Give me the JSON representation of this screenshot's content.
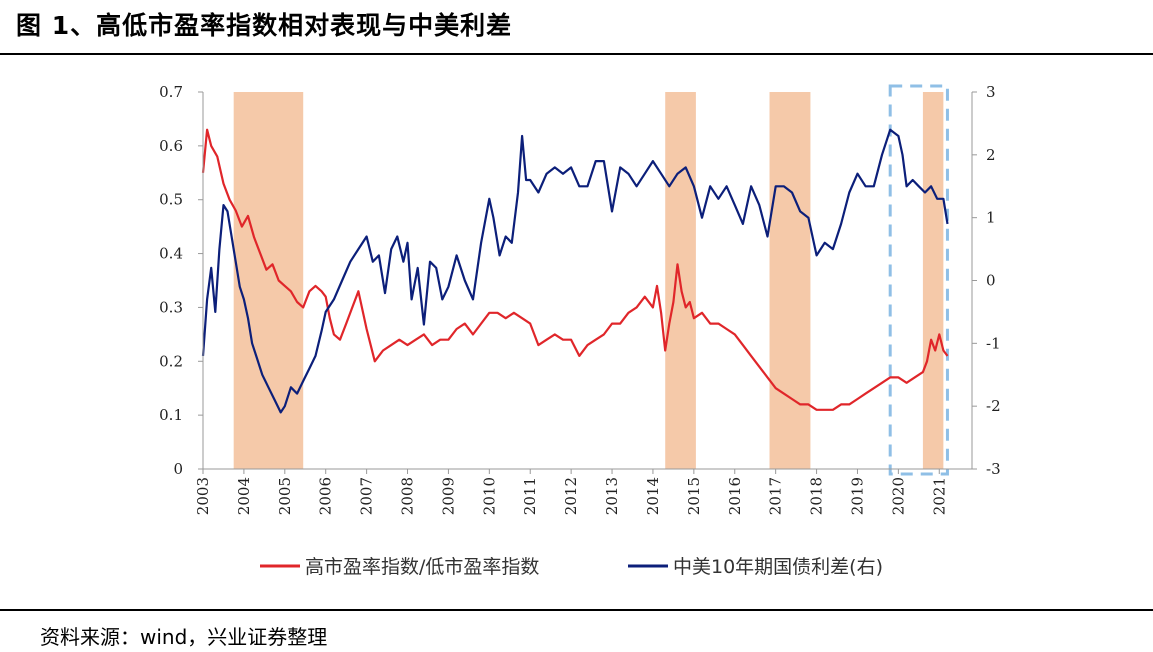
{
  "header": {
    "title": "图 1、高低市盈率指数相对表现与中美利差"
  },
  "footer": {
    "source": "资料来源：wind，兴业证券整理"
  },
  "colors": {
    "red_series": "#e0262a",
    "blue_series": "#0c1f7a",
    "shade": "#f5c9a9",
    "box": "#8fbfe6"
  },
  "chart_data": {
    "type": "line",
    "title": "高低市盈率指数相对表现与中美利差",
    "x_ticks": [
      "2003",
      "2004",
      "2005",
      "2006",
      "2007",
      "2008",
      "2009",
      "2010",
      "2011",
      "2012",
      "2013",
      "2014",
      "2015",
      "2016",
      "2017",
      "2018",
      "2019",
      "2020",
      "2021"
    ],
    "xlim": [
      2003,
      2021.8
    ],
    "left_axis": {
      "ylim": [
        0,
        0.7
      ],
      "ticks": [
        "0",
        "0.1",
        "0.2",
        "0.3",
        "0.4",
        "0.5",
        "0.6",
        "0.7"
      ]
    },
    "right_axis": {
      "ylim": [
        -3,
        3
      ],
      "ticks": [
        "-3",
        "-2",
        "-1",
        "0",
        "1",
        "2",
        "3"
      ]
    },
    "shaded_periods": [
      [
        2003.75,
        2005.45
      ],
      [
        2014.3,
        2015.05
      ],
      [
        2016.85,
        2017.85
      ],
      [
        2020.6,
        2021.1
      ]
    ],
    "highlight_box": [
      2019.8,
      2021.2
    ],
    "series": [
      {
        "name": "高市盈率指数/低市盈率指数",
        "axis": "left",
        "color": "#e0262a",
        "x": [
          2003.0,
          2003.1,
          2003.2,
          2003.35,
          2003.5,
          2003.65,
          2003.8,
          2003.95,
          2004.1,
          2004.25,
          2004.4,
          2004.55,
          2004.7,
          2004.85,
          2005.0,
          2005.15,
          2005.3,
          2005.45,
          2005.6,
          2005.75,
          2005.9,
          2006.0,
          2006.1,
          2006.2,
          2006.35,
          2006.5,
          2006.65,
          2006.8,
          2007.0,
          2007.2,
          2007.4,
          2007.6,
          2007.8,
          2008.0,
          2008.2,
          2008.4,
          2008.6,
          2008.8,
          2009.0,
          2009.2,
          2009.4,
          2009.6,
          2009.8,
          2010.0,
          2010.2,
          2010.4,
          2010.6,
          2010.8,
          2011.0,
          2011.2,
          2011.4,
          2011.6,
          2011.8,
          2012.0,
          2012.2,
          2012.4,
          2012.6,
          2012.8,
          2013.0,
          2013.2,
          2013.4,
          2013.6,
          2013.8,
          2014.0,
          2014.1,
          2014.2,
          2014.3,
          2014.4,
          2014.5,
          2014.6,
          2014.7,
          2014.8,
          2014.9,
          2015.0,
          2015.2,
          2015.4,
          2015.6,
          2015.8,
          2016.0,
          2016.2,
          2016.4,
          2016.6,
          2016.8,
          2017.0,
          2017.2,
          2017.4,
          2017.6,
          2017.8,
          2018.0,
          2018.2,
          2018.4,
          2018.6,
          2018.8,
          2019.0,
          2019.2,
          2019.4,
          2019.6,
          2019.8,
          2020.0,
          2020.2,
          2020.4,
          2020.6,
          2020.7,
          2020.8,
          2020.9,
          2021.0,
          2021.1,
          2021.2
        ],
        "y": [
          0.55,
          0.63,
          0.6,
          0.58,
          0.53,
          0.5,
          0.48,
          0.45,
          0.47,
          0.43,
          0.4,
          0.37,
          0.38,
          0.35,
          0.34,
          0.33,
          0.31,
          0.3,
          0.33,
          0.34,
          0.33,
          0.32,
          0.28,
          0.25,
          0.24,
          0.27,
          0.3,
          0.33,
          0.26,
          0.2,
          0.22,
          0.23,
          0.24,
          0.23,
          0.24,
          0.25,
          0.23,
          0.24,
          0.24,
          0.26,
          0.27,
          0.25,
          0.27,
          0.29,
          0.29,
          0.28,
          0.29,
          0.28,
          0.27,
          0.23,
          0.24,
          0.25,
          0.24,
          0.24,
          0.21,
          0.23,
          0.24,
          0.25,
          0.27,
          0.27,
          0.29,
          0.3,
          0.32,
          0.3,
          0.34,
          0.29,
          0.22,
          0.27,
          0.31,
          0.38,
          0.33,
          0.3,
          0.31,
          0.28,
          0.29,
          0.27,
          0.27,
          0.26,
          0.25,
          0.23,
          0.21,
          0.19,
          0.17,
          0.15,
          0.14,
          0.13,
          0.12,
          0.12,
          0.11,
          0.11,
          0.11,
          0.12,
          0.12,
          0.13,
          0.14,
          0.15,
          0.16,
          0.17,
          0.17,
          0.16,
          0.17,
          0.18,
          0.2,
          0.24,
          0.22,
          0.25,
          0.22,
          0.21
        ]
      },
      {
        "name": "中美10年期国债利差(右)",
        "axis": "right",
        "color": "#0c1f7a",
        "x": [
          2003.0,
          2003.1,
          2003.2,
          2003.3,
          2003.4,
          2003.5,
          2003.6,
          2003.7,
          2003.8,
          2003.9,
          2004.0,
          2004.1,
          2004.2,
          2004.3,
          2004.45,
          2004.6,
          2004.75,
          2004.9,
          2005.0,
          2005.15,
          2005.3,
          2005.45,
          2005.6,
          2005.75,
          2005.9,
          2006.0,
          2006.2,
          2006.4,
          2006.6,
          2006.8,
          2007.0,
          2007.15,
          2007.3,
          2007.45,
          2007.6,
          2007.75,
          2007.9,
          2008.0,
          2008.1,
          2008.25,
          2008.4,
          2008.55,
          2008.7,
          2008.85,
          2009.0,
          2009.2,
          2009.4,
          2009.6,
          2009.8,
          2010.0,
          2010.1,
          2010.25,
          2010.4,
          2010.55,
          2010.7,
          2010.8,
          2010.9,
          2011.0,
          2011.2,
          2011.4,
          2011.6,
          2011.8,
          2012.0,
          2012.2,
          2012.4,
          2012.6,
          2012.8,
          2013.0,
          2013.2,
          2013.4,
          2013.6,
          2013.8,
          2014.0,
          2014.2,
          2014.4,
          2014.6,
          2014.8,
          2015.0,
          2015.2,
          2015.4,
          2015.6,
          2015.8,
          2016.0,
          2016.2,
          2016.4,
          2016.6,
          2016.8,
          2017.0,
          2017.2,
          2017.4,
          2017.6,
          2017.8,
          2018.0,
          2018.2,
          2018.4,
          2018.6,
          2018.8,
          2019.0,
          2019.2,
          2019.4,
          2019.6,
          2019.8,
          2020.0,
          2020.1,
          2020.2,
          2020.35,
          2020.5,
          2020.65,
          2020.8,
          2020.95,
          2021.1,
          2021.2
        ],
        "y": [
          -1.2,
          -0.3,
          0.2,
          -0.5,
          0.5,
          1.2,
          1.1,
          0.7,
          0.3,
          -0.1,
          -0.3,
          -0.6,
          -1.0,
          -1.2,
          -1.5,
          -1.7,
          -1.9,
          -2.1,
          -2.0,
          -1.7,
          -1.8,
          -1.6,
          -1.4,
          -1.2,
          -0.8,
          -0.5,
          -0.3,
          0.0,
          0.3,
          0.5,
          0.7,
          0.3,
          0.4,
          -0.2,
          0.5,
          0.7,
          0.3,
          0.6,
          -0.3,
          0.2,
          -0.7,
          0.3,
          0.2,
          -0.3,
          -0.1,
          0.4,
          0.0,
          -0.3,
          0.6,
          1.3,
          1.0,
          0.4,
          0.7,
          0.6,
          1.4,
          2.3,
          1.6,
          1.6,
          1.4,
          1.7,
          1.8,
          1.7,
          1.8,
          1.5,
          1.5,
          1.9,
          1.9,
          1.1,
          1.8,
          1.7,
          1.5,
          1.7,
          1.9,
          1.7,
          1.5,
          1.7,
          1.8,
          1.5,
          1.0,
          1.5,
          1.3,
          1.5,
          1.2,
          0.9,
          1.5,
          1.2,
          0.7,
          1.5,
          1.5,
          1.4,
          1.1,
          1.0,
          0.4,
          0.6,
          0.5,
          0.9,
          1.4,
          1.7,
          1.5,
          1.5,
          2.0,
          2.4,
          2.3,
          2.0,
          1.5,
          1.6,
          1.5,
          1.4,
          1.5,
          1.3,
          1.3,
          0.9
        ]
      }
    ],
    "legend_position": "bottom"
  }
}
